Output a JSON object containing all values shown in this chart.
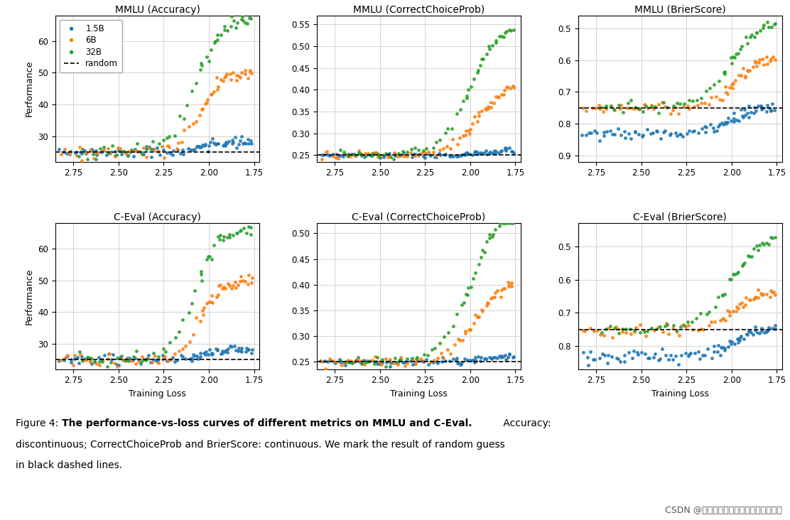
{
  "titles": [
    [
      "MMLU (Accuracy)",
      "MMLU (CorrectChoiceProb)",
      "MMLU (BrierScore)"
    ],
    [
      "C-Eval (Accuracy)",
      "C-Eval (CorrectChoiceProb)",
      "C-Eval (BrierScore)"
    ]
  ],
  "xlabel": "Training Loss",
  "ylabel": "Performance",
  "colors": {
    "1.5B": "#1f77b4",
    "6B": "#ff7f0e",
    "32B": "#2ca02c"
  },
  "marker_size": 12,
  "random_lines": {
    "MMLU (Accuracy)": 25.0,
    "MMLU (CorrectChoiceProb)": 0.25,
    "MMLU (BrierScore)": 0.75,
    "C-Eval (Accuracy)": 25.0,
    "C-Eval (CorrectChoiceProb)": 0.25,
    "C-Eval (BrierScore)": 0.75
  },
  "ylims": {
    "MMLU (Accuracy)": [
      22,
      68
    ],
    "MMLU (CorrectChoiceProb)": [
      0.235,
      0.57
    ],
    "MMLU (BrierScore)": [
      0.46,
      0.92
    ],
    "C-Eval (Accuracy)": [
      22,
      68
    ],
    "C-Eval (CorrectChoiceProb)": [
      0.235,
      0.52
    ],
    "C-Eval (BrierScore)": [
      0.43,
      0.87
    ]
  },
  "brier_inverted": true,
  "xlim": [
    2.85,
    1.72
  ],
  "xticks": [
    2.75,
    2.5,
    2.25,
    2.0,
    1.75
  ],
  "caption_plain": "Figure 4: ",
  "caption_bold": "The performance-vs-loss curves of different metrics on MMLU and C-Eval.",
  "caption_rest": " Accuracy:\ndiscontinuous; CorrectChoiceProb and BrierScore: continuous. We mark the result of random guess\nin black dashed lines.",
  "watermark": "CSDN @人工智能大模型讲师培训咨询叶梓"
}
